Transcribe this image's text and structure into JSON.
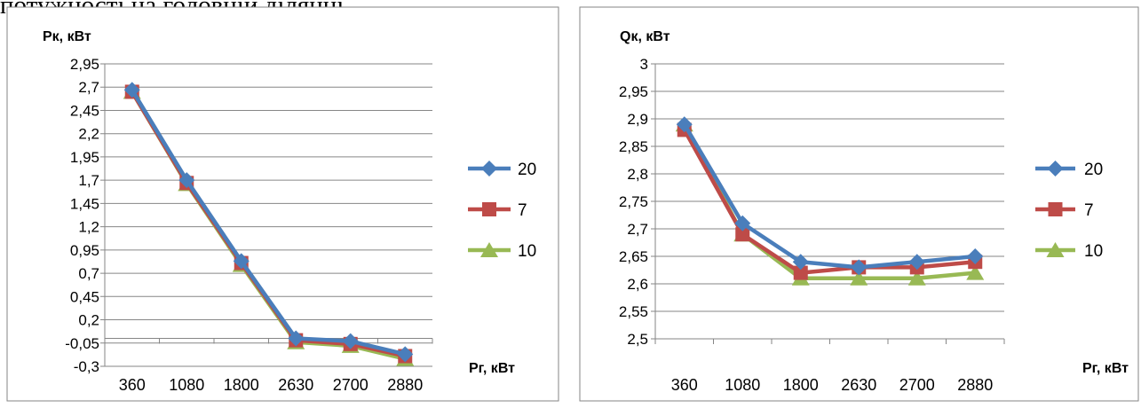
{
  "page": {
    "heading": "потужності на головній ділянці."
  },
  "chart_data": [
    {
      "type": "line",
      "ylabel": "Рк, кВт",
      "xlabel": "Рг, кВт",
      "categories": [
        "360",
        "1080",
        "1800",
        "2630",
        "2700",
        "2880"
      ],
      "yticks": [
        "2,95",
        "2,7",
        "2,45",
        "2,2",
        "1,95",
        "1,7",
        "1,45",
        "1,2",
        "0,95",
        "0,7",
        "0,45",
        "0,2",
        "-0,05",
        "-0,3"
      ],
      "ylim": [
        -0.3,
        2.95
      ],
      "grid": true,
      "legend_position": "right",
      "series": [
        {
          "name": "20",
          "color": "#4a7ebb",
          "marker": "diamond",
          "values": [
            2.67,
            1.7,
            0.83,
            0.0,
            -0.03,
            -0.17
          ]
        },
        {
          "name": "7",
          "color": "#be4b48",
          "marker": "square",
          "values": [
            2.65,
            1.67,
            0.81,
            -0.02,
            -0.06,
            -0.19
          ]
        },
        {
          "name": "10",
          "color": "#98b954",
          "marker": "triangle",
          "values": [
            2.65,
            1.66,
            0.79,
            -0.04,
            -0.08,
            -0.22
          ]
        }
      ]
    },
    {
      "type": "line",
      "ylabel": "Qк, кВт",
      "xlabel": "Рг, кВт",
      "categories": [
        "360",
        "1080",
        "1800",
        "2630",
        "2700",
        "2880"
      ],
      "yticks": [
        "3",
        "2,95",
        "2,9",
        "2,85",
        "2,8",
        "2,75",
        "2,7",
        "2,65",
        "2,6",
        "2,55",
        "2,5"
      ],
      "ylim": [
        2.5,
        3.0
      ],
      "grid": true,
      "legend_position": "right",
      "series": [
        {
          "name": "20",
          "color": "#4a7ebb",
          "marker": "diamond",
          "values": [
            2.89,
            2.71,
            2.64,
            2.63,
            2.64,
            2.65
          ]
        },
        {
          "name": "7",
          "color": "#be4b48",
          "marker": "square",
          "values": [
            2.88,
            2.69,
            2.62,
            2.63,
            2.63,
            2.64
          ]
        },
        {
          "name": "10",
          "color": "#98b954",
          "marker": "triangle",
          "values": [
            2.89,
            2.69,
            2.61,
            2.61,
            2.61,
            2.62
          ]
        }
      ]
    }
  ]
}
